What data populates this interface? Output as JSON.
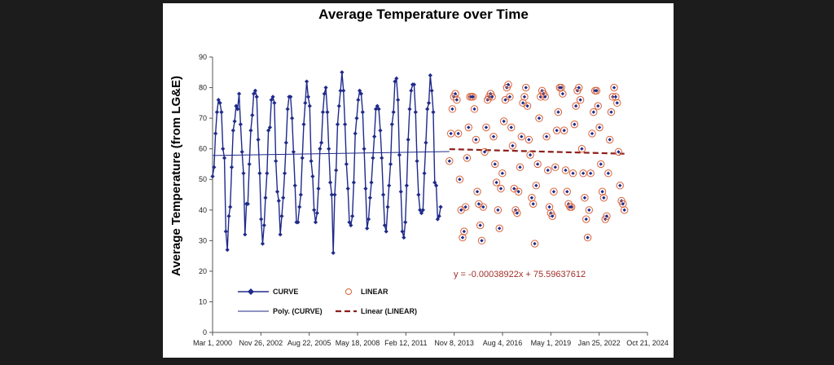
{
  "chart_data": {
    "type": "scatter",
    "title": "Average Temperature over Time",
    "xlabel": "",
    "ylabel": "Average Temperature  (from LG&E)",
    "x_axis": {
      "type": "date",
      "range": [
        "2000-03-01",
        "2024-10-21"
      ],
      "ticks": [
        "2000-03-01",
        "2002-11-26",
        "2005-08-22",
        "2008-05-18",
        "2011-02-12",
        "2013-11-08",
        "2016-08-04",
        "2019-05-01",
        "2022-01-25",
        "2024-10-21"
      ],
      "tick_labels": [
        "Mar 1, 2000",
        "Nov 26, 2002",
        "Aug 22, 2005",
        "May 18, 2008",
        "Feb 12, 2011",
        "Nov 8, 2013",
        "Aug 4, 2016",
        "May 1, 2019",
        "Jan 25, 2022",
        "Oct 21, 2024"
      ]
    },
    "y_axis": {
      "range": [
        0,
        90
      ],
      "ticks": [
        0,
        10,
        20,
        30,
        40,
        50,
        60,
        70,
        80,
        90
      ]
    },
    "grid": false,
    "legend_position": "bottom-left",
    "series": [
      {
        "name": "CURVE",
        "style": "line-with-diamond-markers",
        "color": "#1f2a8a",
        "x_start": "2000-03-01",
        "step": "monthly",
        "values": [
          51,
          54,
          65,
          72,
          76,
          75,
          72,
          60,
          57,
          33,
          27,
          38,
          41,
          54,
          66,
          69,
          74,
          73,
          78,
          68,
          59,
          52,
          32,
          42,
          42,
          55,
          66,
          71,
          78,
          79,
          77,
          63,
          52,
          37,
          29,
          35,
          44,
          52,
          66,
          67,
          76,
          77,
          75,
          56,
          46,
          43,
          32,
          38,
          44,
          52,
          62,
          73,
          77,
          77,
          70,
          59,
          48,
          36,
          36,
          41,
          45,
          57,
          68,
          75,
          82,
          77,
          74,
          56,
          51,
          40,
          36,
          39,
          47,
          60,
          62,
          72,
          78,
          80,
          72,
          60,
          49,
          45,
          26,
          45,
          53,
          68,
          74,
          79,
          85,
          79,
          68,
          55,
          47,
          36,
          35,
          38,
          49,
          65,
          70,
          76,
          79,
          78,
          72,
          60,
          47,
          34,
          37,
          44,
          49,
          57,
          64,
          73,
          74,
          73,
          66,
          57,
          45,
          35,
          33,
          41,
          48,
          55,
          68,
          72,
          82,
          83,
          76,
          58,
          46,
          33,
          31,
          36,
          48,
          63,
          73,
          79,
          81,
          81,
          72,
          56,
          45,
          40,
          39,
          40,
          52,
          62,
          73,
          75,
          84,
          79,
          72,
          49,
          48,
          37,
          38,
          41
        ]
      },
      {
        "name": "LINEAR",
        "style": "open-circle-markers",
        "color": "#d9623a",
        "x_start": "2013-08-01",
        "step": "monthly",
        "values": [
          56,
          65,
          73,
          77,
          78,
          76,
          65,
          50,
          40,
          31,
          33,
          41,
          57,
          67,
          77,
          77,
          77,
          73,
          63,
          46,
          42,
          35,
          30,
          41,
          59,
          67,
          76,
          77,
          78,
          77,
          64,
          55,
          49,
          40,
          34,
          47,
          52,
          69,
          76,
          80,
          81,
          77,
          67,
          61,
          47,
          40,
          39,
          46,
          54,
          64,
          75,
          77,
          80,
          74,
          63,
          58,
          44,
          42,
          29,
          48,
          55,
          70,
          77,
          79,
          78,
          77,
          64,
          53,
          41,
          39,
          38,
          46,
          54,
          66,
          72,
          80,
          80,
          78,
          66,
          53,
          46,
          42,
          41,
          41,
          52,
          68,
          74,
          79,
          80,
          76,
          60,
          52,
          44,
          37,
          31,
          40,
          52,
          65,
          72,
          79,
          79,
          74,
          67,
          55,
          46,
          44,
          37,
          38,
          52,
          63,
          72,
          77,
          80,
          77,
          75,
          59,
          48,
          43,
          42,
          40
        ]
      },
      {
        "name": "Poly. (CURVE)",
        "style": "thin-trend-line",
        "color": "#1f2a8a",
        "points": [
          [
            "2000-03-01",
            57.8
          ],
          [
            "2013-08-01",
            59.1
          ]
        ]
      },
      {
        "name": "Linear (LINEAR)",
        "style": "dashed-trend-line",
        "color": "#8b1f1a",
        "points": [
          [
            "2013-08-01",
            59.9
          ],
          [
            "2023-07-01",
            58.4
          ]
        ]
      }
    ],
    "annotations": [
      {
        "text": "y = -0.00038922x + 75.59637612",
        "color": "#a0302a"
      }
    ]
  }
}
